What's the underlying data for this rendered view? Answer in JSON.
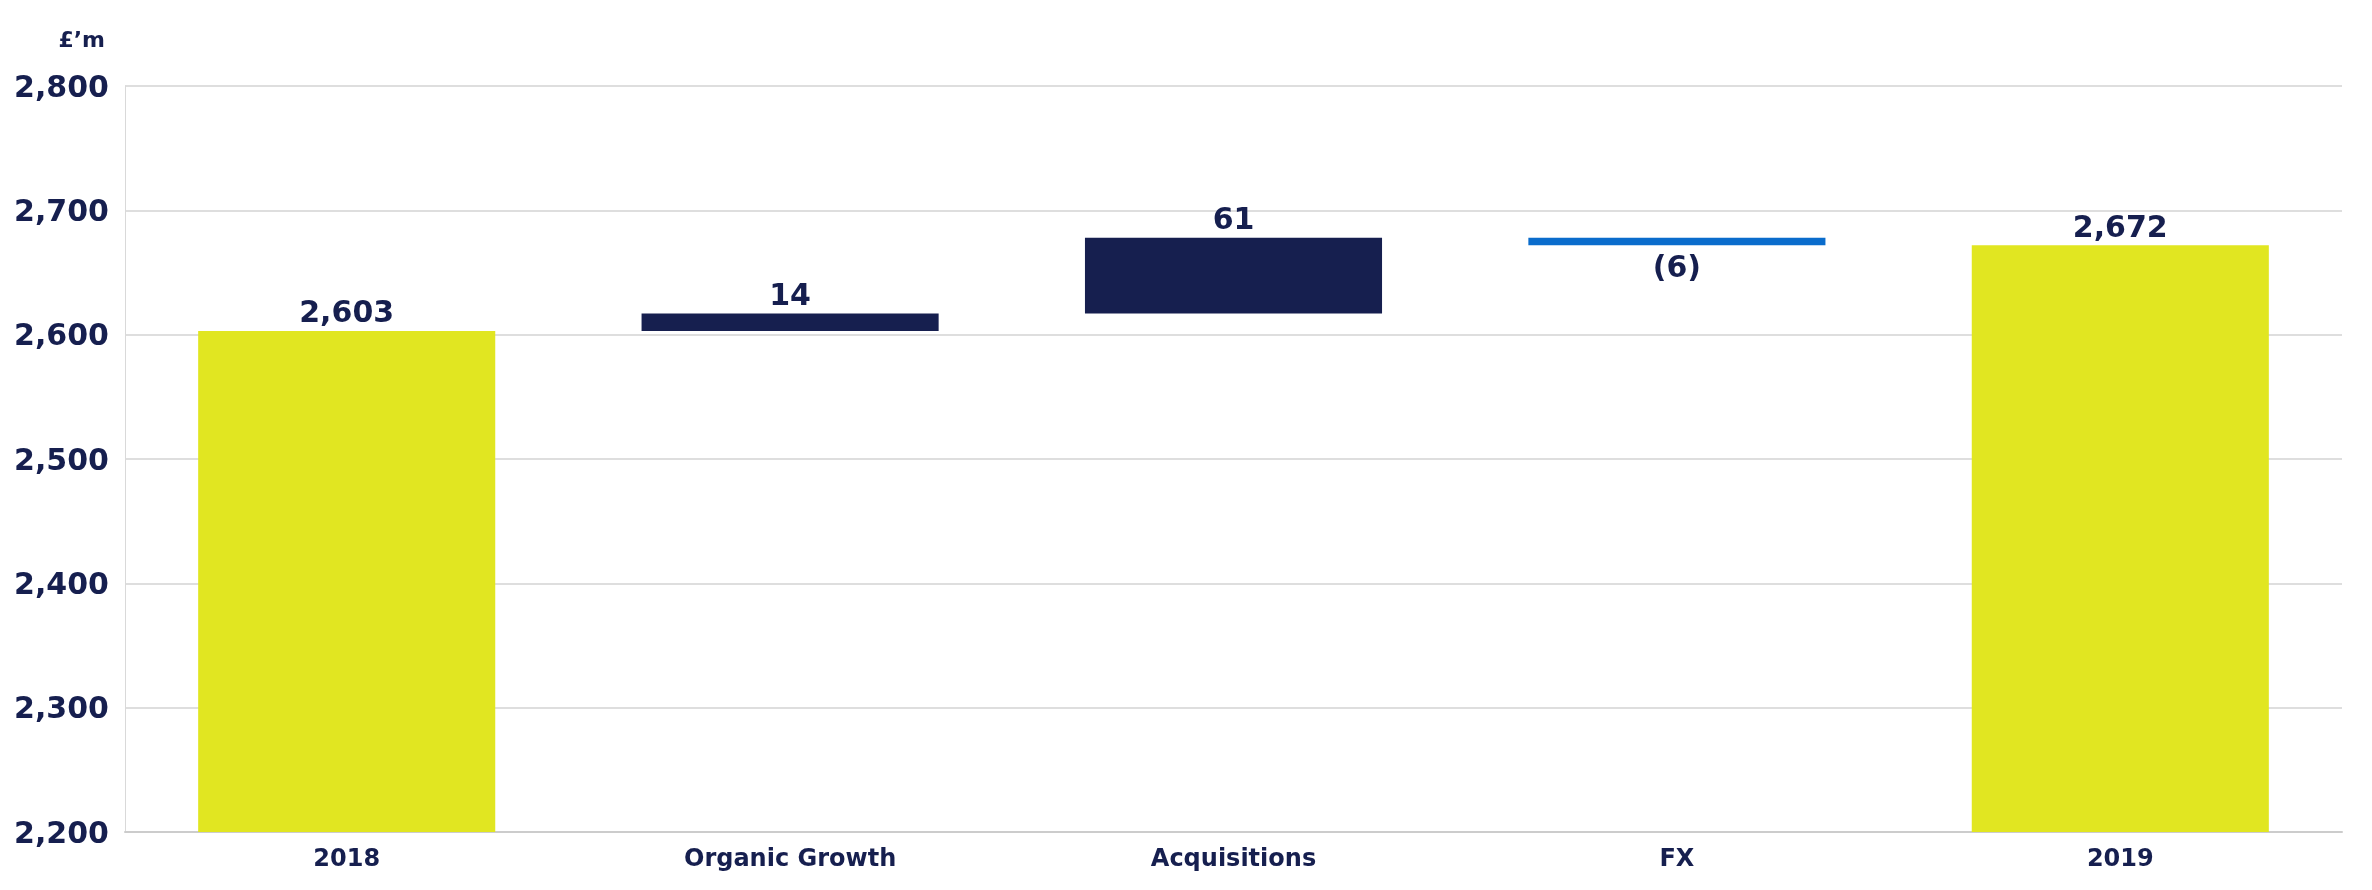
{
  "chart_data": {
    "type": "bar",
    "ylabel": "£’m",
    "categories": [
      "2018",
      "Organic Growth",
      "Acquisitions",
      "FX",
      "2019"
    ],
    "values": [
      2603,
      14,
      61,
      -6,
      2672
    ],
    "base": [
      null,
      2603,
      2617,
      2678,
      null
    ],
    "colors": [
      "#e1e621",
      "#161f4f",
      "#161f4f",
      "#0a6ccc",
      "#e1e621"
    ],
    "value_labels": [
      "2,603",
      "14",
      "61",
      "(6)",
      "2,672"
    ],
    "ylim": [
      2200,
      2800
    ],
    "yticks": [
      {
        "value": 2200,
        "label": "2,200"
      },
      {
        "value": 2300,
        "label": "2,300"
      },
      {
        "value": 2400,
        "label": "2,400"
      },
      {
        "value": 2500,
        "label": "2,500"
      },
      {
        "value": 2600,
        "label": "2,600"
      },
      {
        "value": 2700,
        "label": "2,700"
      },
      {
        "value": 2800,
        "label": "2,800"
      }
    ],
    "grid": "y"
  }
}
